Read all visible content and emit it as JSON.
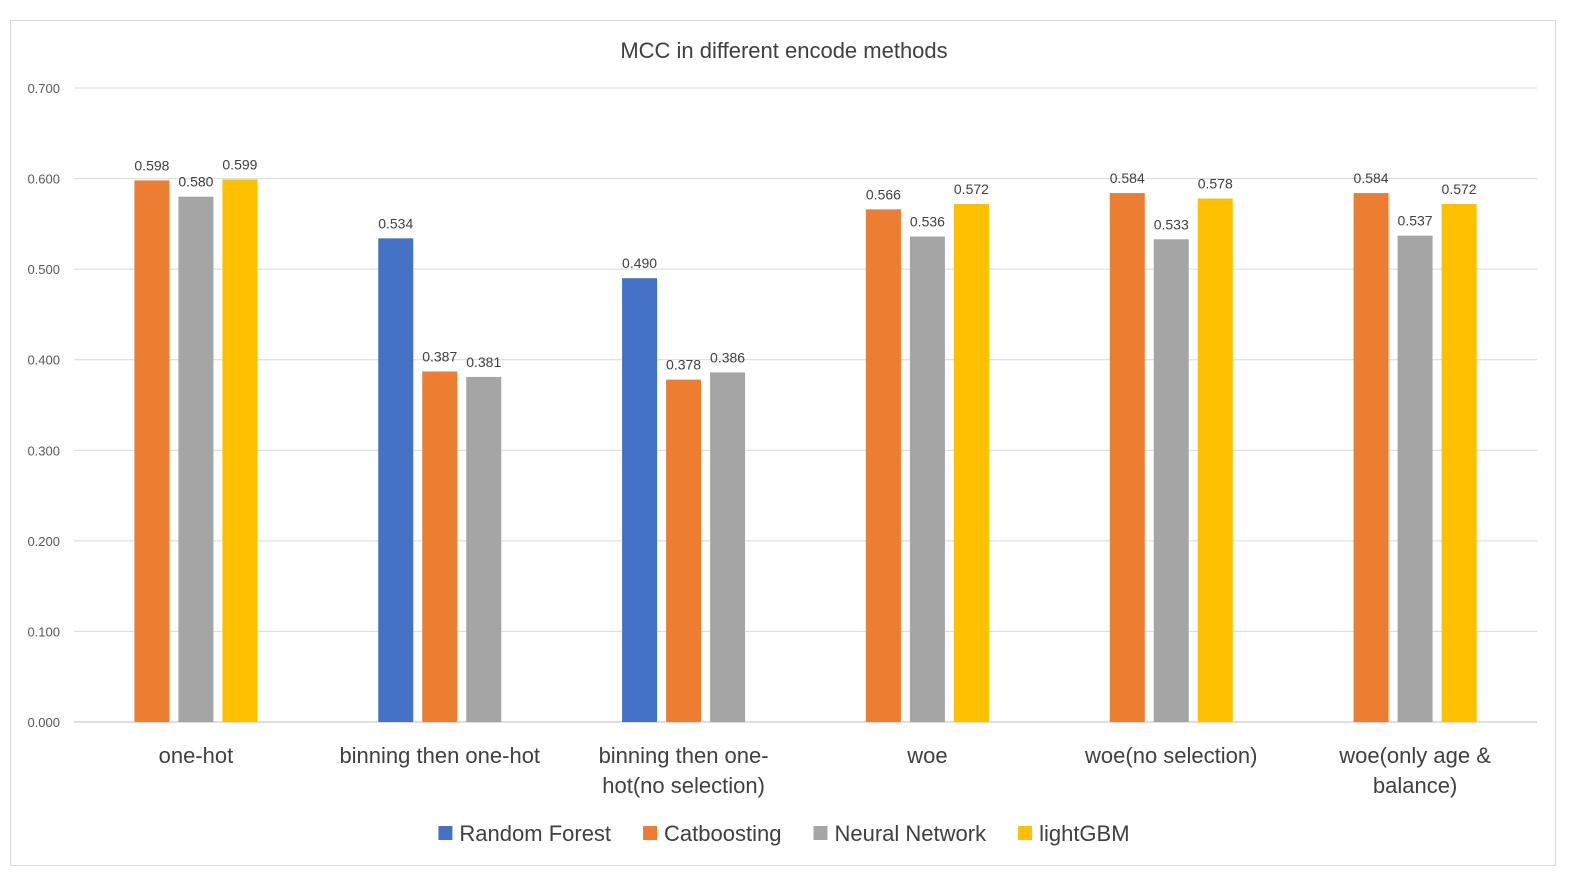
{
  "chart_data": {
    "type": "bar",
    "title": "MCC in different encode methods",
    "categories": [
      [
        "one-hot"
      ],
      [
        "binning then one-hot"
      ],
      [
        "binning then one-",
        "hot(no selection)"
      ],
      [
        "woe"
      ],
      [
        "woe(no selection)"
      ],
      [
        "woe(only age &",
        "balance)"
      ]
    ],
    "series": [
      {
        "name": "Random Forest",
        "color": "#4472c4",
        "values": [
          null,
          0.534,
          0.49,
          null,
          null,
          null
        ]
      },
      {
        "name": "Catboosting",
        "color": "#ed7d31",
        "values": [
          0.598,
          0.387,
          0.378,
          0.566,
          0.584,
          0.584
        ]
      },
      {
        "name": "Neural Network",
        "color": "#a5a5a5",
        "values": [
          0.58,
          0.381,
          0.386,
          0.536,
          0.533,
          0.537
        ]
      },
      {
        "name": "lightGBM",
        "color": "#ffc000",
        "values": [
          0.599,
          null,
          null,
          0.572,
          0.578,
          0.572
        ]
      }
    ],
    "data_labels": [
      [
        null,
        "0.534",
        "0.490",
        null,
        null,
        null
      ],
      [
        "0.598",
        "0.387",
        "0.378",
        "0.566",
        "0.584",
        "0.584"
      ],
      [
        "0.580",
        "0.381",
        "0.386",
        "0.536",
        "0.533",
        "0.537"
      ],
      [
        "0.599",
        null,
        null,
        "0.572",
        "0.578",
        "0.572"
      ]
    ],
    "y_ticks": [
      "0.000",
      "0.100",
      "0.200",
      "0.300",
      "0.400",
      "0.500",
      "0.600",
      "0.700"
    ],
    "ylim": [
      0,
      0.7
    ],
    "grid": true,
    "legend": "bottom",
    "xlabel": "",
    "ylabel": ""
  }
}
